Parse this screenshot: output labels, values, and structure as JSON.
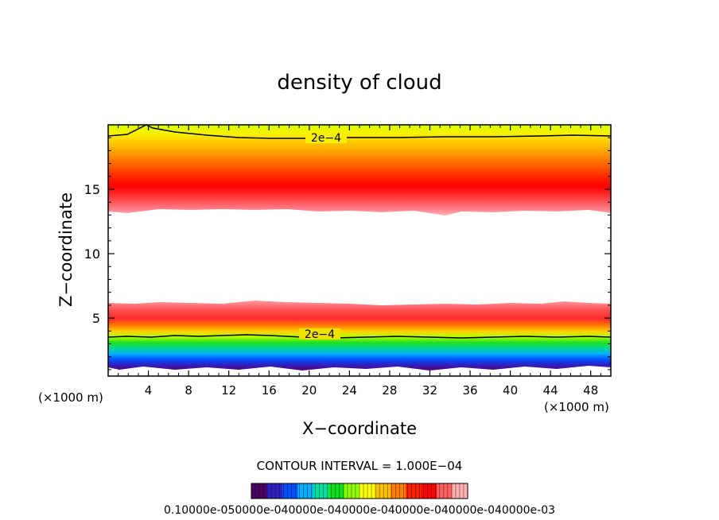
{
  "chart_data": {
    "type": "heatmap",
    "title": "density of cloud",
    "xlabel": "X−coordinate",
    "ylabel": "Z−coordinate",
    "x_unit_left": "(×1000 m)",
    "x_unit_right": "(×1000 m)",
    "xlim": [
      0,
      50
    ],
    "ylim": [
      0.5,
      20
    ],
    "x_ticks": [
      4,
      8,
      12,
      16,
      20,
      24,
      28,
      32,
      36,
      40,
      44,
      48
    ],
    "y_ticks": [
      5,
      10,
      15
    ],
    "contour_interval_text": "CONTOUR INTERVAL = 1.000E−04",
    "contour_labels": [
      {
        "text": "2e−4",
        "x": 20.5,
        "z": 19.0
      },
      {
        "text": "2e−4",
        "x": 19.5,
        "z": 3.4
      }
    ],
    "contour_levels_2e4": [
      {
        "name": "upper",
        "x": [
          0,
          2,
          3.6,
          4.5,
          8,
          14,
          20,
          28,
          34,
          40,
          46,
          50
        ],
        "z": [
          19.0,
          19.2,
          19.8,
          19.5,
          19.1,
          18.9,
          18.9,
          18.9,
          19.0,
          19.0,
          19.1,
          19.0
        ]
      },
      {
        "name": "lower",
        "x": [
          0,
          4,
          8,
          12,
          16,
          20,
          24,
          28,
          32,
          36,
          40,
          44,
          48,
          50
        ],
        "z": [
          3.3,
          3.2,
          3.3,
          3.2,
          3.4,
          3.3,
          3.2,
          3.3,
          3.2,
          3.3,
          3.2,
          3.3,
          3.2,
          3.3
        ]
      }
    ],
    "cloud_layers": [
      {
        "name": "upper-layer",
        "z_bottom": 13.0,
        "z_peak": 15.0,
        "z_top": 20.0
      },
      {
        "name": "lower-layer",
        "z_bottom": 0.8,
        "z_peak": 5.0,
        "z_top": 5.8
      }
    ],
    "colorbar": {
      "labels_text": "0.10000e-050000e-040000e-040000e-040000e-040000e-040000e-03",
      "range": [
        1e-06,
        0.001
      ],
      "colors": [
        "#4a0060",
        "#3020c0",
        "#0050ff",
        "#00b0ff",
        "#00e0a0",
        "#10e020",
        "#90ff00",
        "#ffff00",
        "#ffc000",
        "#ff8000",
        "#ff2000",
        "#ff0000",
        "#ff6060",
        "#ffb0b0"
      ]
    }
  }
}
